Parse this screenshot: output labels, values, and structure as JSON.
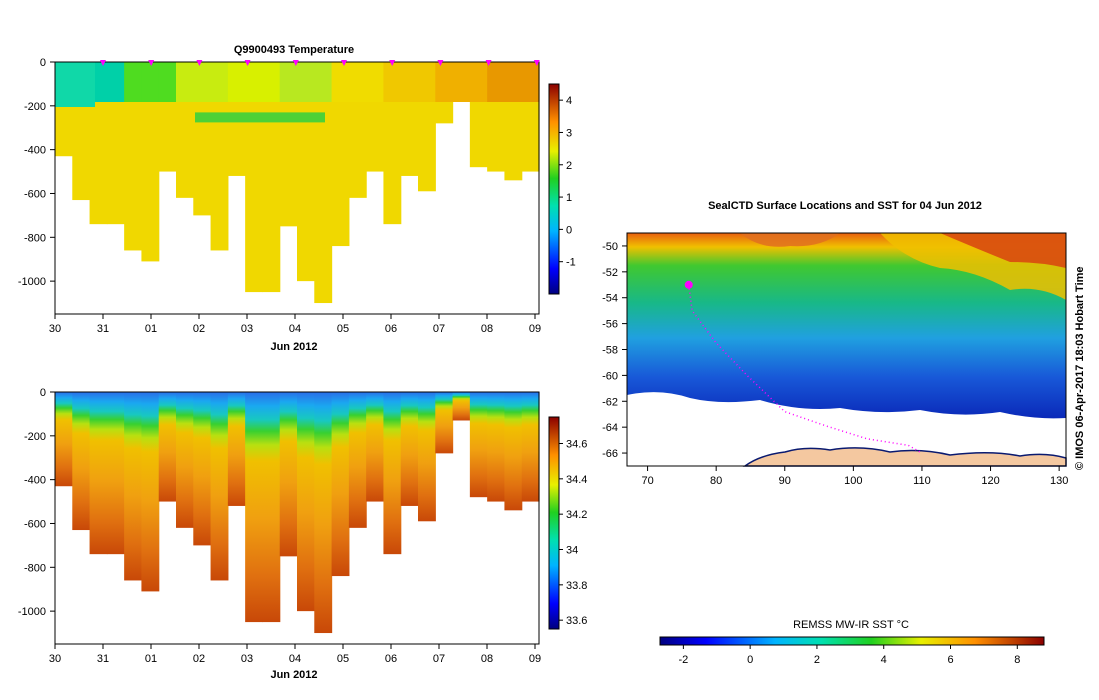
{
  "chart_data": [
    {
      "type": "heatmap",
      "title": "Q9900493  Temperature",
      "xlabel": "Jun 2012",
      "x_ticks": [
        "30",
        "31",
        "01",
        "02",
        "03",
        "04",
        "05",
        "06",
        "07",
        "08",
        "09"
      ],
      "y_ticks": [
        0,
        -200,
        -400,
        -600,
        -800,
        -1000
      ],
      "ylim": [
        -1150,
        0
      ],
      "colorbar": {
        "min": -2,
        "max": 4.5,
        "ticks": [
          -1,
          0,
          1,
          2,
          3,
          4
        ]
      },
      "profile_depths": [
        -430,
        -630,
        -740,
        -740,
        -860,
        -910,
        -500,
        -620,
        -700,
        -860,
        -520,
        -1050,
        -1050,
        -750,
        -1000,
        -1100,
        -840,
        -620,
        -500,
        -740,
        -520,
        -590,
        -280,
        -130,
        -480,
        -500,
        -540,
        -500
      ],
      "colors": {
        "surface": [
          "#00d0a8",
          "#4fdc20",
          "#c8ec10",
          "#d8f000",
          "#b8e820",
          "#f0dc00",
          "#f0c800",
          "#f0b000",
          "#e89800"
        ],
        "deep": "#f0d800"
      },
      "marker_color": "#ff00ff"
    },
    {
      "type": "heatmap",
      "title": "",
      "xlabel": "Jun 2012",
      "x_ticks": [
        "30",
        "31",
        "01",
        "02",
        "03",
        "04",
        "05",
        "06",
        "07",
        "08",
        "09"
      ],
      "y_ticks": [
        0,
        -200,
        -400,
        -600,
        -800,
        -1000
      ],
      "ylim": [
        -1150,
        0
      ],
      "colorbar": {
        "min": 33.55,
        "max": 34.75,
        "ticks": [
          33.6,
          33.8,
          34,
          34.2,
          34.4,
          34.6
        ]
      }
    },
    {
      "type": "heatmap",
      "title": "SealCTD Surface Locations and SST for 04 Jun 2012",
      "x_ticks": [
        70,
        80,
        90,
        100,
        110,
        120,
        130
      ],
      "y_ticks": [
        -50,
        -52,
        -54,
        -56,
        -58,
        -60,
        -62,
        -64,
        -66
      ],
      "xlim": [
        67,
        131
      ],
      "ylim": [
        -67,
        -49
      ],
      "colorbar_label": "REMSS MW-IR SST °C",
      "colorbar": {
        "min": -2.7,
        "max": 8.8,
        "ticks": [
          -2,
          0,
          2,
          4,
          6,
          8
        ]
      },
      "track": [
        [
          76.0,
          -53.0
        ],
        [
          76.5,
          -55.0
        ],
        [
          80.0,
          -57.5
        ],
        [
          84.5,
          -60.0
        ],
        [
          90.0,
          -62.8
        ],
        [
          96.0,
          -63.9
        ],
        [
          102.0,
          -64.9
        ],
        [
          108.0,
          -65.4
        ],
        [
          110.0,
          -66.0
        ]
      ]
    }
  ],
  "side_text": "© IMOS 06-Apr-2017 18:03 Hobart Time"
}
